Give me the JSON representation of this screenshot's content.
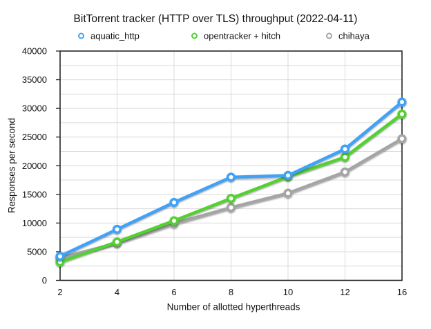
{
  "chart_data": {
    "type": "line",
    "title": "BitTorrent tracker (HTTP over TLS) throughput (2022-04-11)",
    "xlabel": "Number of allotted hyperthreads",
    "ylabel": "Responses per second",
    "categories": [
      2,
      4,
      6,
      8,
      10,
      12,
      16
    ],
    "x_tick_labels": [
      "2",
      "4",
      "6",
      "8",
      "10",
      "12",
      "16"
    ],
    "y_tick_labels": [
      "0",
      "5000",
      "10000",
      "15000",
      "20000",
      "25000",
      "30000",
      "35000",
      "40000"
    ],
    "ylim": [
      0,
      40000
    ],
    "y_major_step": 5000,
    "y_minor_step": 2500,
    "grid": true,
    "legend_position": "top",
    "x_spacing": "categorical-even",
    "series": [
      {
        "name": "aquatic_http",
        "color": "#3FA2F7",
        "values": [
          4200,
          8900,
          13600,
          18000,
          18300,
          22900,
          31100
        ]
      },
      {
        "name": "opentracker + hitch",
        "color": "#53D133",
        "values": [
          3200,
          6700,
          10400,
          14300,
          18100,
          21500,
          29000
        ]
      },
      {
        "name": "chihaya",
        "color": "#A5A5A5",
        "values": [
          3900,
          6500,
          9900,
          12700,
          15200,
          18900,
          24700
        ]
      }
    ]
  },
  "style_colors": {
    "grid_line": "#d9d9d9",
    "frame": "#262626",
    "text": "#111111",
    "marker_fill": "#ffffff"
  }
}
